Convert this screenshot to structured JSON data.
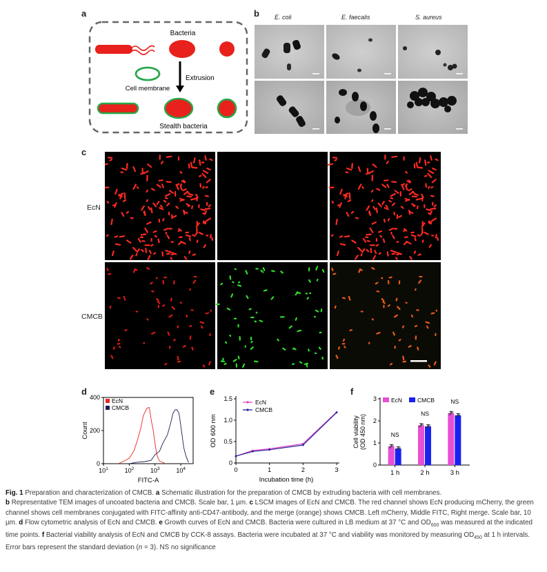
{
  "panels": {
    "a": {
      "letter": "a",
      "bacteria_label": "Bacteria",
      "extrusion_label": "Extrusion",
      "cell_membrane_label": "Cell membrane",
      "stealth_label": "Stealth bacteria"
    },
    "b": {
      "letter": "b",
      "titles": [
        "E. coli",
        "E. faecalis",
        "S. aureus"
      ]
    },
    "c": {
      "letter": "c",
      "row_labels": [
        "EcN",
        "CMCB"
      ]
    },
    "d": {
      "letter": "d",
      "legend": [
        "EcN",
        "CMCB"
      ]
    },
    "e": {
      "letter": "e"
    },
    "f": {
      "letter": "f"
    }
  },
  "chart_data": [
    {
      "panel": "d",
      "type": "line",
      "xlabel": "FITC-A",
      "ylabel": "Count",
      "x_scale": "log",
      "xlim": [
        10,
        30000
      ],
      "ylim": [
        0,
        400
      ],
      "x_ticks": [
        "10^1",
        "10^2",
        "10^3",
        "10^4"
      ],
      "y_ticks": [
        0,
        200,
        400
      ],
      "legend_placement": "top-left",
      "series": [
        {
          "name": "EcN",
          "color": "#e8261e",
          "x": [
            40,
            60,
            100,
            150,
            200,
            280,
            350,
            420,
            500,
            600,
            700,
            850,
            1000,
            1200,
            1500,
            2000,
            2500
          ],
          "y": [
            5,
            15,
            40,
            80,
            130,
            210,
            300,
            330,
            350,
            330,
            280,
            200,
            120,
            60,
            25,
            8,
            2
          ]
        },
        {
          "name": "CMCB",
          "color": "#1b1b55",
          "x": [
            100,
            200,
            400,
            700,
            1000,
            1500,
            2000,
            3000,
            4000,
            5000,
            6000,
            7000,
            8500,
            10000,
            13000,
            16000,
            20000
          ],
          "y": [
            2,
            8,
            15,
            30,
            50,
            80,
            110,
            170,
            240,
            300,
            320,
            330,
            300,
            220,
            110,
            40,
            8
          ]
        }
      ]
    },
    {
      "panel": "e",
      "type": "line",
      "xlabel": "Incubation time (h)",
      "ylabel": "OD 600 nm",
      "xlim": [
        0,
        3
      ],
      "ylim": [
        0,
        1.5
      ],
      "x_ticks": [
        0,
        1,
        2,
        3
      ],
      "y_ticks": [
        0,
        0.5,
        1.0,
        1.5
      ],
      "legend_placement": "top-left",
      "series": [
        {
          "name": "EcN",
          "color": "#e040c8",
          "x": [
            0,
            0.5,
            1,
            2,
            3
          ],
          "y": [
            0.16,
            0.29,
            0.33,
            0.45,
            1.19
          ]
        },
        {
          "name": "CMCB",
          "color": "#22229a",
          "x": [
            0,
            0.5,
            1,
            2,
            3
          ],
          "y": [
            0.16,
            0.27,
            0.31,
            0.42,
            1.18
          ]
        }
      ]
    },
    {
      "panel": "f",
      "type": "bar",
      "ylabel": "Cell viability (OD 450 nm)",
      "categories": [
        "1 h",
        "2 h",
        "3 h"
      ],
      "ylim": [
        0,
        3
      ],
      "y_ticks": [
        0,
        1,
        2,
        3
      ],
      "legend_placement": "top-left",
      "annotations": [
        "NS",
        "NS",
        "NS"
      ],
      "series": [
        {
          "name": "EcN",
          "color": "#e84fd4",
          "values": [
            0.85,
            1.8,
            2.35
          ]
        },
        {
          "name": "CMCB",
          "color": "#1a22f0",
          "values": [
            0.75,
            1.75,
            2.25
          ]
        }
      ]
    }
  ],
  "caption": {
    "title": "Fig. 1",
    "title_text": "Preparation and characterization of CMCB.",
    "a_letter": "a",
    "a_text": "Schematic illustration for the preparation of CMCB by extruding bacteria with cell membranes.",
    "b_letter": "b",
    "b_text": "Representative TEM images of uncoated bacteria and CMCB. Scale bar, 1 µm.",
    "c_letter": "c",
    "c_text": "LSCM images of EcN and CMCB. The red channel shows EcN producing mCherry, the green channel shows cell membranes conjugated with FITC-affinity anti-CD47-antibody, and the merge (orange) shows CMCB. Left mCherry, Middle FITC, Right merge. Scale bar, 10 µm.",
    "d_letter": "d",
    "d_text": "Flow cytometric analysis of EcN and CMCB.",
    "e_letter": "e",
    "e_text_1": "Growth curves of EcN and CMCB. Bacteria were cultured in LB medium at 37 °C and OD",
    "e_sub": "600",
    "e_text_2": " was measured at the indicated time points.",
    "f_letter": "f",
    "f_text_1": "Bacterial viability analysis of EcN and CMCB by CCK-8 assays. Bacteria were incubated at 37 °C and viability was monitored by measuring OD",
    "f_sub": "450",
    "f_text_2": " at 1 h intervals. Error bars represent the standard deviation (",
    "f_n": "n",
    "f_text_3": " = 3). NS no significance"
  }
}
